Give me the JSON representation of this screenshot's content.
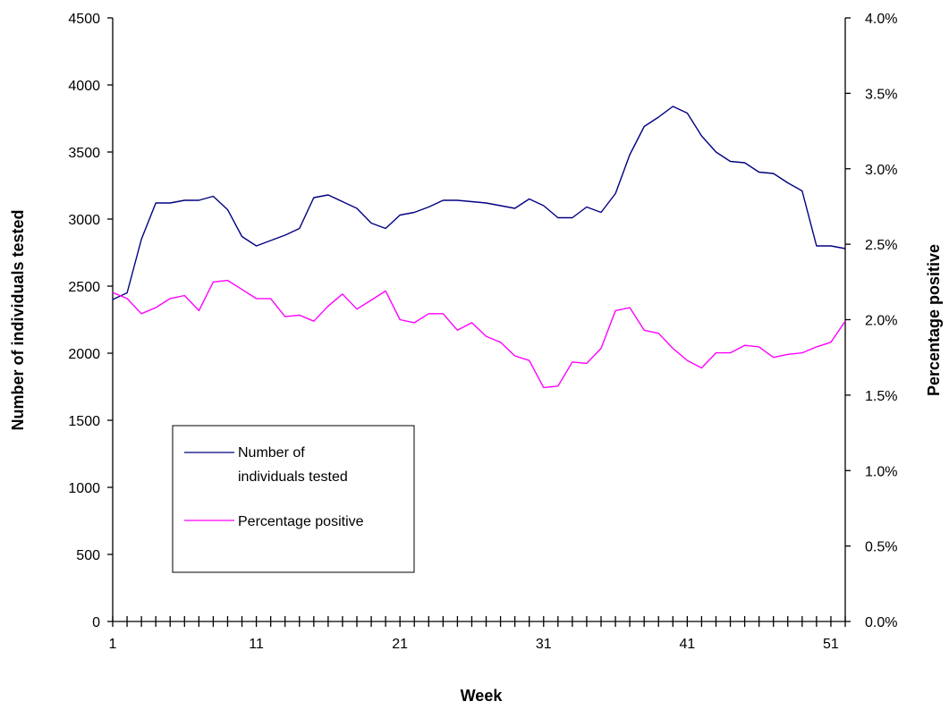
{
  "chart_data": {
    "type": "line",
    "xlabel": "Week",
    "ylabel_left": "Number of individuals tested",
    "ylabel_right": "Percentage positive",
    "x": [
      1,
      2,
      3,
      4,
      5,
      6,
      7,
      8,
      9,
      10,
      11,
      12,
      13,
      14,
      15,
      16,
      17,
      18,
      19,
      20,
      21,
      22,
      23,
      24,
      25,
      26,
      27,
      28,
      29,
      30,
      31,
      32,
      33,
      34,
      35,
      36,
      37,
      38,
      39,
      40,
      41,
      42,
      43,
      44,
      45,
      46,
      47,
      48,
      49,
      50,
      51,
      52
    ],
    "x_ticks": [
      1,
      11,
      21,
      31,
      41,
      51
    ],
    "x_tick_labels": [
      "1",
      "11",
      "21",
      "31",
      "41",
      "51"
    ],
    "xlim": [
      1,
      52
    ],
    "ylim_left": [
      0,
      4500
    ],
    "y_ticks_left": [
      0,
      500,
      1000,
      1500,
      2000,
      2500,
      3000,
      3500,
      4000,
      4500
    ],
    "y_tick_labels_left": [
      "0",
      "500",
      "1000",
      "1500",
      "2000",
      "2500",
      "3000",
      "3500",
      "4000",
      "4500"
    ],
    "ylim_right": [
      0,
      4.0
    ],
    "y_ticks_right": [
      0,
      0.5,
      1.0,
      1.5,
      2.0,
      2.5,
      3.0,
      3.5,
      4.0
    ],
    "y_tick_labels_right": [
      "0.0%",
      "0.5%",
      "1.0%",
      "1.5%",
      "2.0%",
      "2.5%",
      "3.0%",
      "3.5%",
      "4.0%"
    ],
    "grid": false,
    "legend_position": "lower-left",
    "series": [
      {
        "name": "Number of individuals tested",
        "axis": "left",
        "color": "#000080",
        "values": [
          2400,
          2450,
          2850,
          3120,
          3120,
          3140,
          3140,
          3170,
          3070,
          2870,
          2800,
          2840,
          2880,
          2930,
          3160,
          3180,
          3130,
          3080,
          2970,
          2930,
          3030,
          3050,
          3090,
          3140,
          3140,
          3130,
          3120,
          3100,
          3080,
          3150,
          3100,
          3010,
          3010,
          3090,
          3050,
          3190,
          3480,
          3690,
          3760,
          3840,
          3790,
          3620,
          3500,
          3430,
          3420,
          3350,
          3340,
          3270,
          3210,
          2800,
          2800,
          2780
        ]
      },
      {
        "name": "Percentage positive",
        "axis": "right",
        "color": "#ff00ff",
        "values": [
          2.18,
          2.14,
          2.04,
          2.08,
          2.14,
          2.16,
          2.06,
          2.25,
          2.26,
          2.2,
          2.14,
          2.14,
          2.02,
          2.03,
          1.99,
          2.09,
          2.17,
          2.07,
          2.13,
          2.19,
          2.0,
          1.98,
          2.04,
          2.04,
          1.93,
          1.98,
          1.89,
          1.85,
          1.76,
          1.73,
          1.55,
          1.56,
          1.72,
          1.71,
          1.81,
          2.06,
          2.08,
          1.93,
          1.91,
          1.81,
          1.73,
          1.68,
          1.78,
          1.78,
          1.83,
          1.82,
          1.75,
          1.77,
          1.78,
          1.82,
          1.85,
          1.99
        ]
      }
    ]
  }
}
